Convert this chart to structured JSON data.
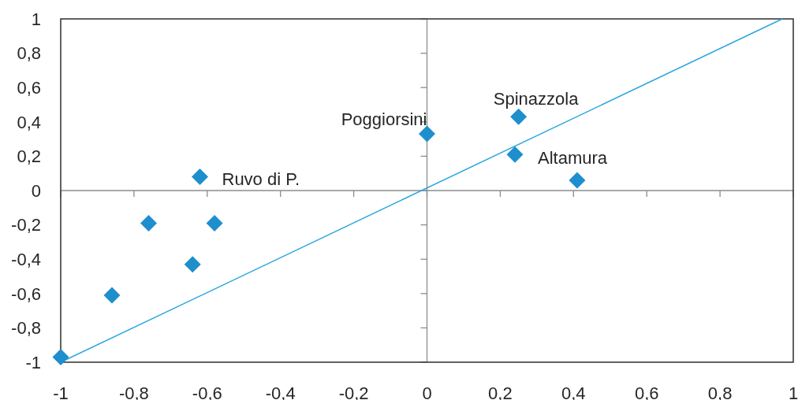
{
  "chart_data": {
    "type": "scatter",
    "marker": "diamond",
    "xlim": [
      -1,
      1
    ],
    "xticks": [
      -1,
      {
        "value": -0.8,
        "label": "-0,8"
      },
      {
        "value": -0.6,
        "label": "-0,6"
      },
      {
        "value": -0.4,
        "label": "-0,4"
      },
      {
        "value": -0.2,
        "label": "-0,2"
      },
      0,
      {
        "value": 0.2,
        "label": "0,2"
      },
      {
        "value": 0.4,
        "label": "0,4"
      },
      {
        "value": 0.6,
        "label": "0,6"
      },
      {
        "value": 0.8,
        "label": "0,8"
      },
      1
    ],
    "ylim": [
      -1,
      1
    ],
    "yticks": [
      -1,
      {
        "value": -0.8,
        "label": "-0,8"
      },
      {
        "value": -0.6,
        "label": "-0,6"
      },
      {
        "value": -0.4,
        "label": "-0,4"
      },
      {
        "value": -0.2,
        "label": "-0,2"
      },
      0,
      {
        "value": 0.2,
        "label": "0,2"
      },
      {
        "value": 0.4,
        "label": "0,4"
      },
      {
        "value": 0.6,
        "label": "0,6"
      },
      {
        "value": 0.8,
        "label": "0,8"
      },
      1
    ],
    "series": [
      {
        "color": "#1e8fcd",
        "x": [
          -1,
          -0.86,
          -0.76,
          -0.64,
          -0.62,
          -0.58,
          0,
          0.24,
          0.25,
          0.41
        ],
        "values": [
          -0.97,
          -0.61,
          -0.19,
          -0.43,
          0.08,
          -0.19,
          0.33,
          0.21,
          0.43,
          0.06
        ]
      },
      {
        "type": "line",
        "marker": "none",
        "color": "#2aa6df",
        "x": [
          -1,
          0.97
        ],
        "values": [
          -1,
          1
        ]
      }
    ],
    "annotations": [
      {
        "text": "Ruvo di P.",
        "x": -0.62,
        "y": 0.08
      },
      {
        "text": "Poggiorsini",
        "x": 0,
        "y": 0.33
      },
      {
        "text": "Spinazzola",
        "x": 0.25,
        "y": 0.43
      },
      {
        "text": "Altamura",
        "x": 0.24,
        "y": 0.21
      }
    ]
  }
}
